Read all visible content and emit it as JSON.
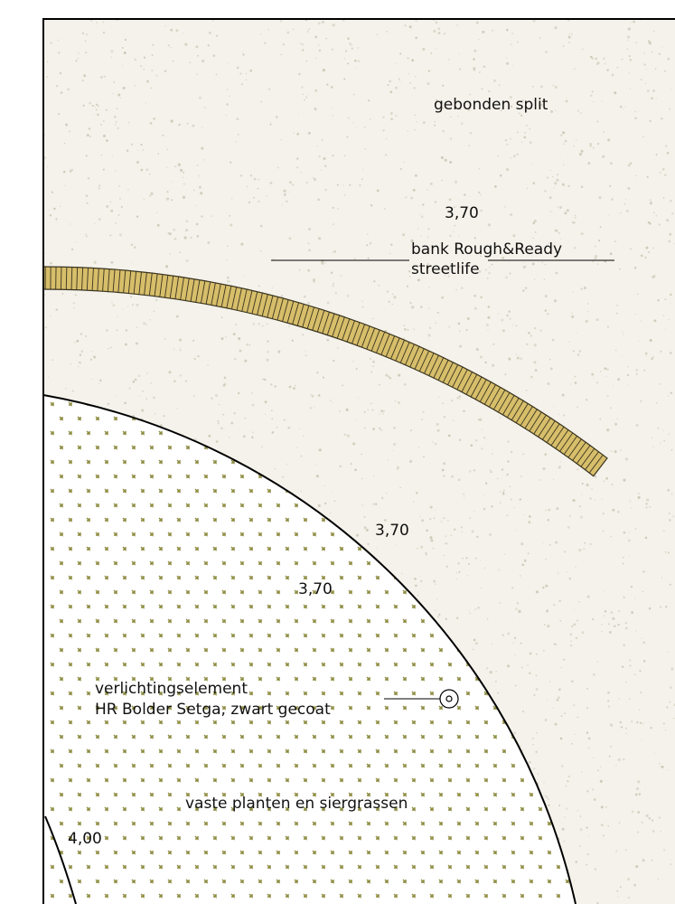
{
  "labels": {
    "surface_split": "gebonden split",
    "dim_top": "3,70",
    "bench_line1": "bank Rough&Ready",
    "bench_line2": "streetlife",
    "dim_mid_1": "3,70",
    "dim_mid_2": "3,70",
    "light_line1": "verlichtingselement",
    "light_line2": "HR Bolder Setga, zwart gecoat",
    "planting": "vaste planten en siergrassen",
    "dim_bottom": "4,00"
  },
  "colors": {
    "split_background": "#f4f2ea",
    "split_speckle": "#c9c6b4",
    "bench_fill": "#d7be6a",
    "bench_stroke": "#3a3420",
    "planting_mark": "#8c8a3e",
    "line": "#000000"
  },
  "icons": {
    "light_fixture": "bollard-light-icon"
  }
}
